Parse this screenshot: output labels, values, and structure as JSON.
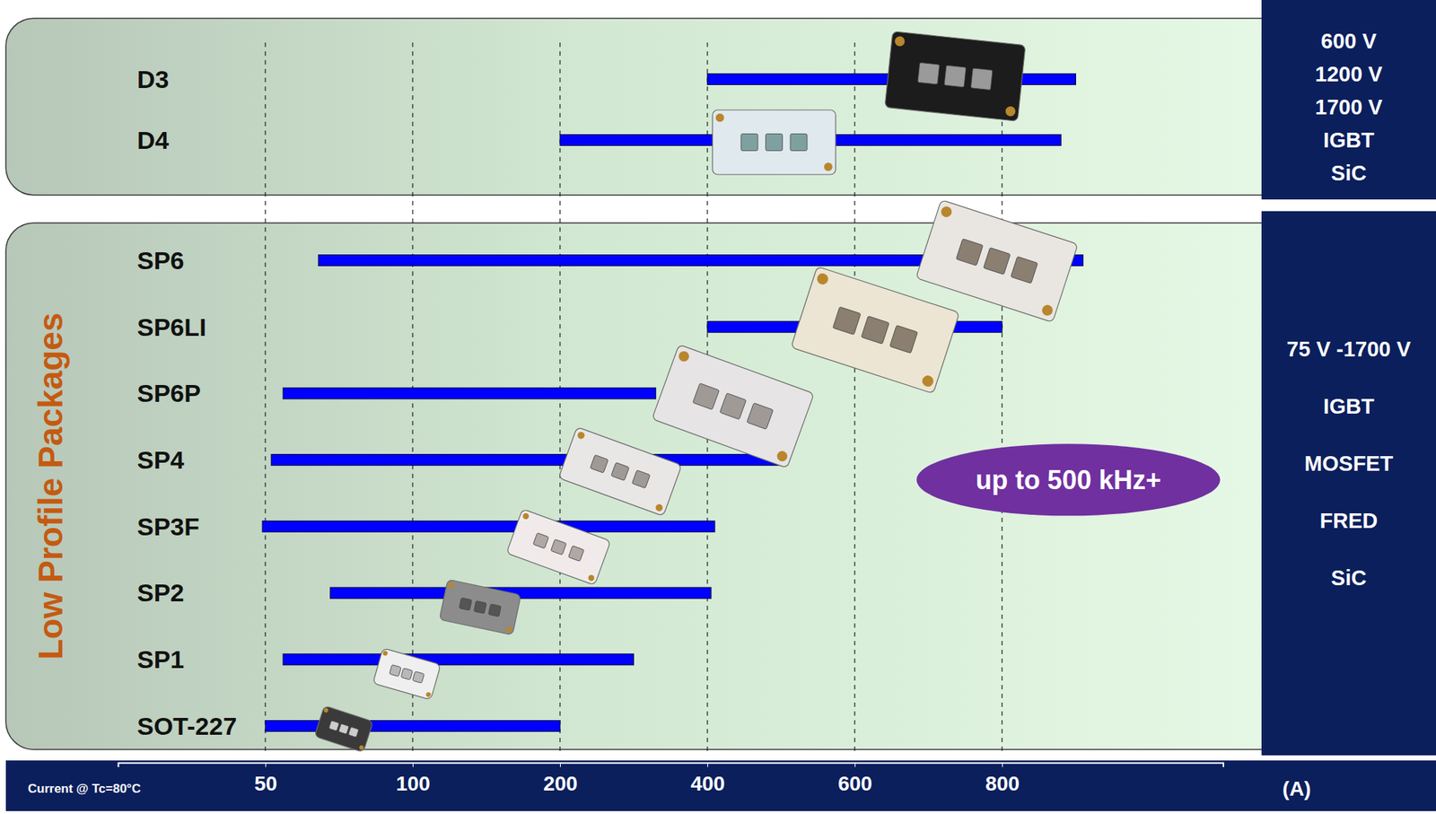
{
  "chart_data": {
    "type": "range_bar",
    "orientation": "horizontal",
    "categories": [
      "D3",
      "D4",
      "SP6",
      "SP6LI",
      "SP6P",
      "SP4",
      "SP3F",
      "SP2",
      "SP1",
      "SOT-227"
    ],
    "values": [
      [
        400,
        900
      ],
      [
        200,
        880
      ],
      [
        68,
        910
      ],
      [
        400,
        800
      ],
      [
        56,
        330
      ],
      [
        52,
        500
      ],
      [
        49,
        410
      ],
      [
        72,
        405
      ],
      [
        56,
        300
      ],
      [
        50,
        200
      ]
    ],
    "color": "#0000ff",
    "xlim": [
      0,
      1100
    ],
    "xticks": [
      50,
      100,
      200,
      400,
      600,
      800
    ],
    "grid": true,
    "xlabel": "Current @ Tc=80°C",
    "xunit": "(A)",
    "groups": [
      {
        "categories": [
          "D3",
          "D4"
        ],
        "specs": [
          "600 V",
          "1200 V",
          "1700 V",
          "IGBT",
          "SiC"
        ]
      },
      {
        "title": "Low Profile Packages",
        "categories": [
          "SP6",
          "SP6LI",
          "SP6P",
          "SP4",
          "SP3F",
          "SP2",
          "SP1",
          "SOT-227"
        ],
        "specs": [
          "75 V -1700 V",
          "IGBT",
          "MOSFET",
          "FRED",
          "SiC"
        ]
      }
    ],
    "annotations": [
      {
        "text": "up to 500 kHz+"
      }
    ]
  }
}
